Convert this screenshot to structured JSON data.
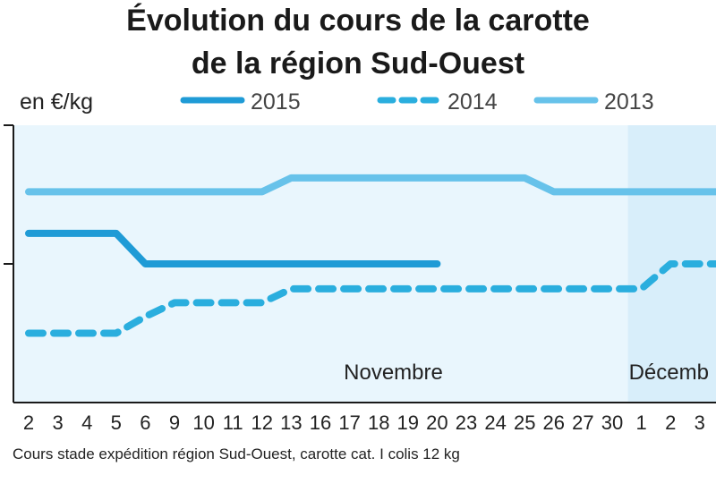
{
  "chart_data": {
    "type": "line",
    "title_line1": "Évolution du cours de la carotte",
    "title_line2": "de la région Sud-Ouest",
    "ylabel": "en €/kg",
    "xlabel": "",
    "categories": [
      "2",
      "3",
      "4",
      "5",
      "6",
      "9",
      "10",
      "11",
      "12",
      "13",
      "16",
      "17",
      "18",
      "19",
      "20",
      "23",
      "24",
      "25",
      "26",
      "27",
      "30",
      "1",
      "2",
      "3"
    ],
    "months": [
      {
        "label": "Novembre",
        "center_index": 12.5
      },
      {
        "label": "Décemb",
        "start_index": 21
      }
    ],
    "ylim": [
      0,
      1
    ],
    "series": [
      {
        "name": "2015",
        "style": "solid",
        "color": "#1f9bd6",
        "values": [
          0.61,
          0.61,
          0.61,
          0.61,
          0.5,
          0.5,
          0.5,
          0.5,
          0.5,
          0.5,
          0.5,
          0.5,
          0.5,
          0.5,
          0.5,
          null,
          null,
          null,
          null,
          null,
          null,
          null,
          null,
          null
        ]
      },
      {
        "name": "2014",
        "style": "dashed",
        "color": "#2aaede",
        "values": [
          0.25,
          0.25,
          0.25,
          0.25,
          0.31,
          0.36,
          0.36,
          0.36,
          0.36,
          0.41,
          0.41,
          0.41,
          0.41,
          0.41,
          0.41,
          0.41,
          0.41,
          0.41,
          0.41,
          0.41,
          0.41,
          0.41,
          0.5,
          0.5
        ]
      },
      {
        "name": "2013",
        "style": "solid",
        "color": "#67c2ea",
        "values": [
          0.76,
          0.76,
          0.76,
          0.76,
          0.76,
          0.76,
          0.76,
          0.76,
          0.76,
          0.81,
          0.81,
          0.81,
          0.81,
          0.81,
          0.81,
          0.81,
          0.81,
          0.81,
          0.76,
          0.76,
          0.76,
          0.76,
          0.76,
          0.76
        ]
      }
    ],
    "grid": false,
    "legend_position": "top",
    "footnote": "Cours stade expédition région Sud-Ouest, carotte cat. I colis 12 kg",
    "colors": {
      "plot_bg": "#e9f6fd",
      "plot_bg_alt": "#d8eefa",
      "axis": "#1a1a1a"
    }
  }
}
